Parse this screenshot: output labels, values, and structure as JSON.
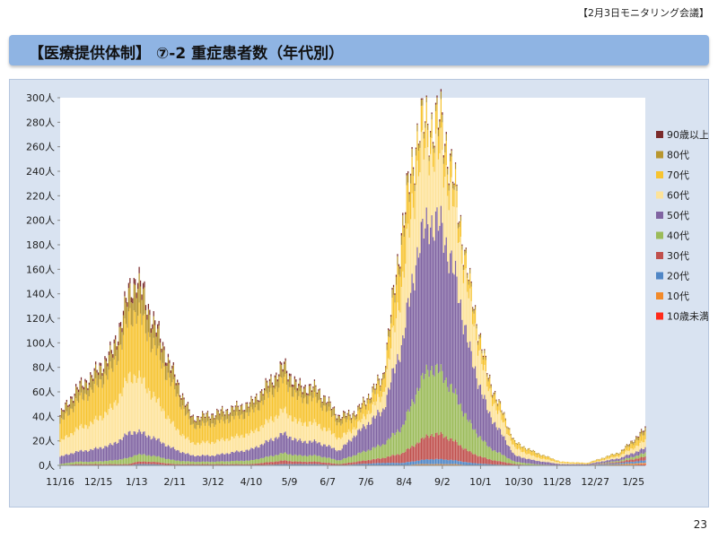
{
  "header": {
    "note": "【2月3日モニタリング会議】"
  },
  "title": "【医療提供体制】 ⑦-2 重症患者数（年代別）",
  "page_number": "23",
  "chart_data": {
    "type": "bar",
    "stacked": true,
    "yunit": "人",
    "ylim": [
      0,
      300
    ],
    "yticks": [
      0,
      20,
      40,
      60,
      80,
      100,
      120,
      140,
      160,
      180,
      200,
      220,
      240,
      260,
      280,
      300
    ],
    "ytick_labels": [
      "0人",
      "20人",
      "40人",
      "60人",
      "80人",
      "100人",
      "120人",
      "140人",
      "160人",
      "180人",
      "200人",
      "220人",
      "240人",
      "260人",
      "280人",
      "300人"
    ],
    "x_tick_labels": [
      "11/16",
      "12/15",
      "1/13",
      "2/11",
      "3/12",
      "4/10",
      "5/9",
      "6/7",
      "7/6",
      "8/4",
      "9/2",
      "10/1",
      "10/30",
      "11/28",
      "12/27",
      "1/25"
    ],
    "x_tick_days": [
      0,
      29,
      58,
      87,
      116,
      145,
      174,
      203,
      232,
      261,
      290,
      319,
      348,
      377,
      406,
      435
    ],
    "x_range_days": [
      0,
      444
    ],
    "legend_position": "right",
    "series": [
      {
        "name": "10歳未満",
        "color": "#ff2a1a"
      },
      {
        "name": "10代",
        "color": "#f28a2a"
      },
      {
        "name": "20代",
        "color": "#4f86c6"
      },
      {
        "name": "30代",
        "color": "#c0504d"
      },
      {
        "name": "40代",
        "color": "#9bbb59"
      },
      {
        "name": "50代",
        "color": "#8064a2"
      },
      {
        "name": "60代",
        "color": "#fde39a"
      },
      {
        "name": "70代",
        "color": "#f7c431"
      },
      {
        "name": "80代",
        "color": "#b8962e"
      },
      {
        "name": "90歳以上",
        "color": "#7b2b2b"
      }
    ],
    "key_points": [
      {
        "day": 0,
        "values": [
          0,
          0,
          0,
          0,
          1,
          6,
          12,
          15,
          6,
          1
        ]
      },
      {
        "day": 12,
        "values": [
          0,
          0,
          0,
          1,
          2,
          8,
          18,
          22,
          9,
          2
        ]
      },
      {
        "day": 25,
        "values": [
          0,
          0,
          0,
          1,
          2,
          10,
          22,
          27,
          10,
          2
        ]
      },
      {
        "day": 40,
        "values": [
          0,
          0,
          0,
          1,
          3,
          13,
          30,
          32,
          12,
          3
        ]
      },
      {
        "day": 52,
        "values": [
          0,
          0,
          0,
          1,
          5,
          20,
          45,
          48,
          18,
          4
        ]
      },
      {
        "day": 58,
        "values": [
          0,
          0,
          1,
          2,
          6,
          19,
          46,
          53,
          23,
          5
        ]
      },
      {
        "day": 70,
        "values": [
          0,
          0,
          1,
          2,
          5,
          15,
          35,
          42,
          17,
          4
        ]
      },
      {
        "day": 87,
        "values": [
          0,
          0,
          0,
          1,
          3,
          9,
          18,
          30,
          10,
          2
        ]
      },
      {
        "day": 100,
        "values": [
          0,
          0,
          0,
          1,
          2,
          5,
          10,
          14,
          6,
          1
        ]
      },
      {
        "day": 116,
        "values": [
          0,
          0,
          0,
          1,
          2,
          5,
          11,
          15,
          7,
          1
        ]
      },
      {
        "day": 145,
        "values": [
          0,
          0,
          0,
          1,
          3,
          9,
          13,
          17,
          7,
          1
        ]
      },
      {
        "day": 170,
        "values": [
          0,
          0,
          1,
          3,
          6,
          16,
          19,
          25,
          10,
          2
        ]
      },
      {
        "day": 180,
        "values": [
          0,
          0,
          1,
          2,
          5,
          12,
          15,
          20,
          8,
          2
        ]
      },
      {
        "day": 195,
        "values": [
          0,
          0,
          1,
          2,
          5,
          11,
          15,
          20,
          8,
          1
        ]
      },
      {
        "day": 212,
        "values": [
          0,
          0,
          0,
          1,
          3,
          8,
          10,
          12,
          5,
          1
        ]
      },
      {
        "day": 225,
        "values": [
          0,
          0,
          1,
          2,
          6,
          17,
          6,
          8,
          3,
          1
        ]
      },
      {
        "day": 245,
        "values": [
          0,
          0,
          2,
          4,
          11,
          28,
          13,
          10,
          4,
          1
        ]
      },
      {
        "day": 260,
        "values": [
          0,
          0,
          2,
          8,
          22,
          70,
          50,
          36,
          8,
          2
        ]
      },
      {
        "day": 272,
        "values": [
          0,
          1,
          3,
          15,
          45,
          115,
          70,
          22,
          5,
          1
        ]
      },
      {
        "day": 280,
        "values": [
          0,
          1,
          4,
          20,
          55,
          120,
          62,
          13,
          4,
          1
        ]
      },
      {
        "day": 290,
        "values": [
          0,
          1,
          4,
          20,
          50,
          118,
          58,
          22,
          6,
          2
        ]
      },
      {
        "day": 300,
        "values": [
          0,
          1,
          3,
          15,
          38,
          95,
          55,
          13,
          4,
          1
        ]
      },
      {
        "day": 312,
        "values": [
          0,
          0,
          2,
          8,
          22,
          55,
          38,
          11,
          3,
          1
        ]
      },
      {
        "day": 325,
        "values": [
          0,
          0,
          1,
          4,
          10,
          28,
          18,
          8,
          2,
          1
        ]
      },
      {
        "day": 345,
        "values": [
          0,
          0,
          0,
          1,
          2,
          5,
          6,
          4,
          1,
          0
        ]
      },
      {
        "day": 360,
        "values": [
          0,
          0,
          0,
          0,
          1,
          3,
          3,
          3,
          1,
          0
        ]
      },
      {
        "day": 380,
        "values": [
          0,
          0,
          0,
          0,
          0,
          1,
          1,
          1,
          0,
          0
        ]
      },
      {
        "day": 400,
        "values": [
          0,
          0,
          0,
          0,
          0,
          1,
          0,
          1,
          0,
          0
        ]
      },
      {
        "day": 425,
        "values": [
          0,
          1,
          1,
          1,
          1,
          2,
          2,
          2,
          1,
          0
        ]
      },
      {
        "day": 444,
        "values": [
          1,
          1,
          2,
          3,
          3,
          4,
          6,
          6,
          3,
          1
        ]
      }
    ]
  }
}
